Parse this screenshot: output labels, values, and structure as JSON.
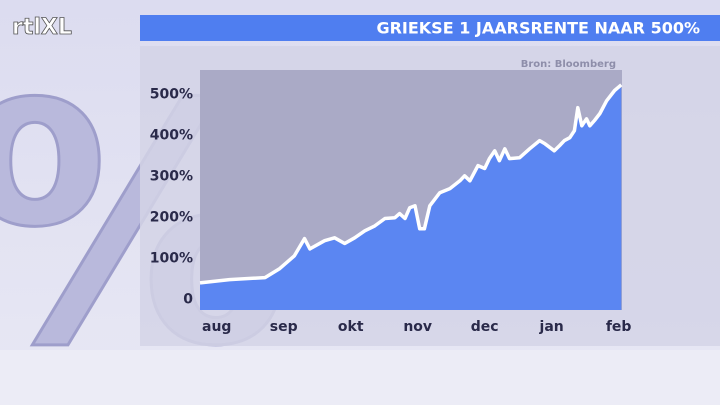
{
  "logo": "rtlXL",
  "chart_data": {
    "type": "area",
    "title": "GRIEKSE 1 JAARSRENTE NAAR 500%",
    "source": "Bron: Bloomberg",
    "x": [
      -0.25,
      0.19,
      0.72,
      0.94,
      1.16,
      1.31,
      1.39,
      1.61,
      1.76,
      1.91,
      2.06,
      2.21,
      2.36,
      2.51,
      2.66,
      2.73,
      2.81,
      2.88,
      2.96,
      3.03,
      3.1,
      3.18,
      3.33,
      3.48,
      3.63,
      3.7,
      3.78,
      3.9,
      4.0,
      4.07,
      4.15,
      4.22,
      4.3,
      4.37,
      4.52,
      4.67,
      4.82,
      4.9,
      5.04,
      5.12,
      5.19,
      5.27,
      5.34,
      5.39,
      5.45,
      5.52,
      5.57,
      5.64,
      5.72,
      5.82,
      5.94,
      6.04
    ],
    "series": [
      {
        "color": "#5b86f2",
        "line_color": "#ffffff",
        "values": [
          41,
          49,
          54,
          76,
          107,
          149,
          124,
          144,
          151,
          137,
          151,
          168,
          180,
          198,
          200,
          210,
          198,
          224,
          229,
          173,
          173,
          229,
          261,
          271,
          290,
          302,
          290,
          327,
          320,
          344,
          363,
          339,
          368,
          344,
          346,
          368,
          388,
          380,
          363,
          376,
          388,
          395,
          412,
          468,
          424,
          441,
          424,
          437,
          454,
          485,
          510,
          524
        ]
      }
    ],
    "xlim": [
      -0.25,
      6.05
    ],
    "xticks": [
      {
        "value": 0,
        "label": "aug"
      },
      {
        "value": 1,
        "label": "sep"
      },
      {
        "value": 2,
        "label": "okt"
      },
      {
        "value": 3,
        "label": "nov"
      },
      {
        "value": 4,
        "label": "dec"
      },
      {
        "value": 5,
        "label": "jan"
      },
      {
        "value": 6,
        "label": "feb"
      }
    ],
    "ylim": [
      -25,
      560
    ],
    "yticks": [
      0,
      {
        "value": 100,
        "label": "100%"
      },
      {
        "value": 200,
        "label": "200%"
      },
      {
        "value": 300,
        "label": "300%"
      },
      {
        "value": 400,
        "label": "400%"
      },
      {
        "value": 500,
        "label": "500%"
      }
    ]
  }
}
